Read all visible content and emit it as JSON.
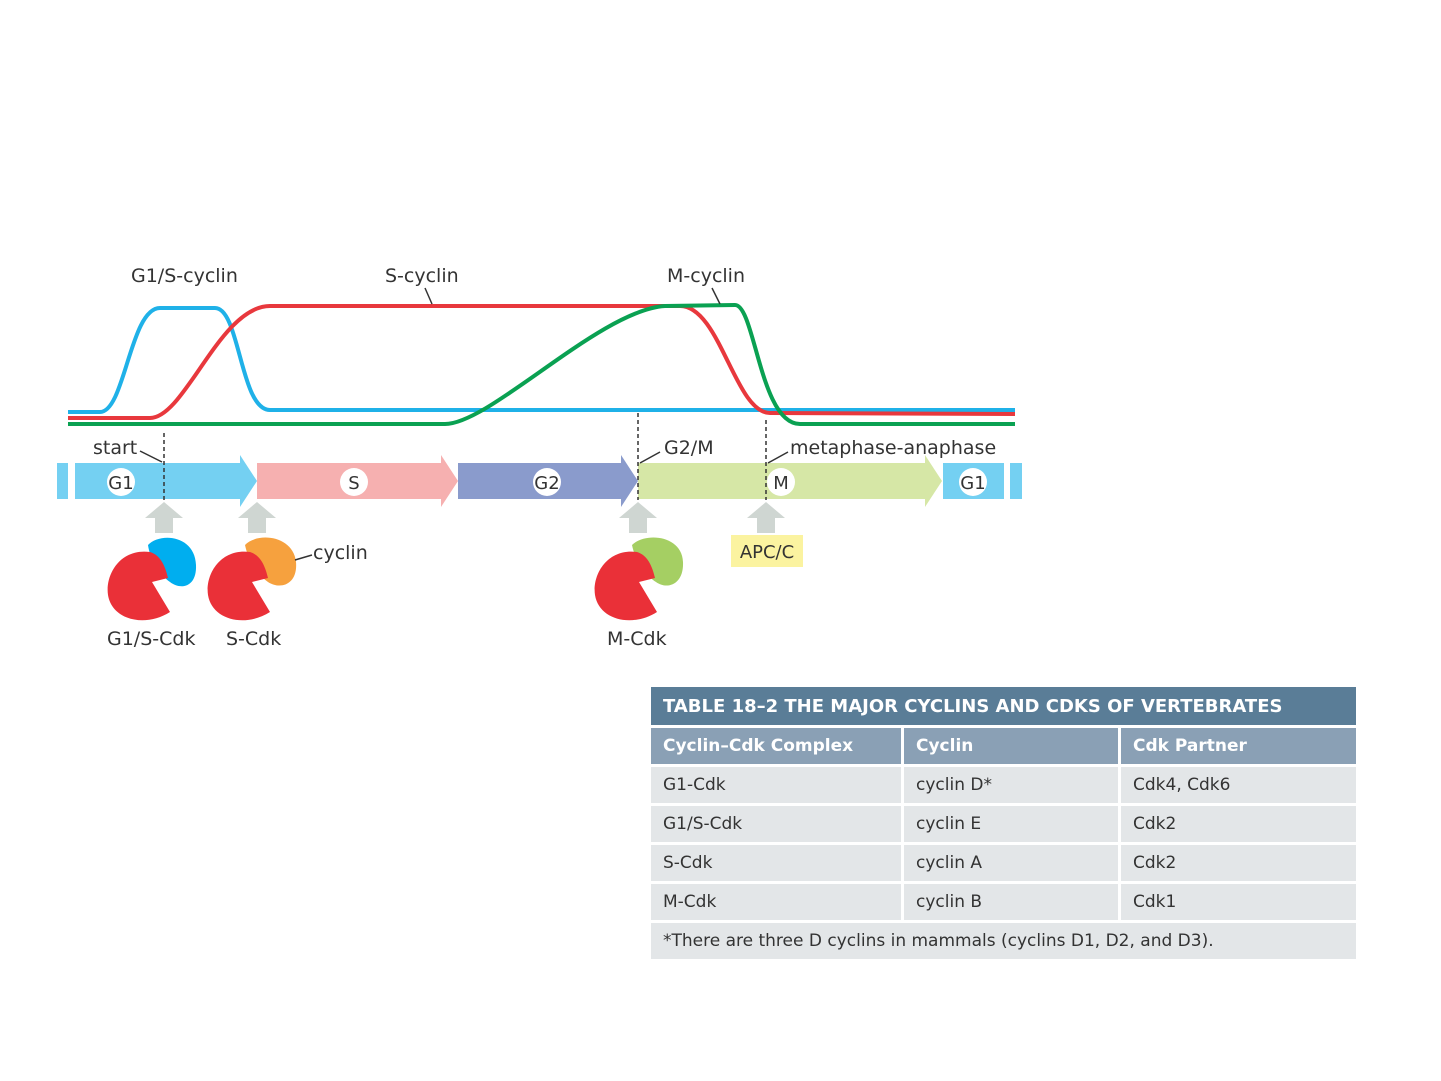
{
  "diagram": {
    "curve_labels": {
      "g1s_cyclin": "G1/S-cyclin",
      "s_cyclin": "S-cyclin",
      "m_cyclin": "M-cyclin"
    },
    "checkpoints": {
      "start": "start",
      "g2m": "G2/M",
      "meta": "metaphase-anaphase"
    },
    "phases": {
      "g1": "G1",
      "s": "S",
      "g2": "G2",
      "m": "M",
      "g1_end": "G1"
    },
    "complexes": {
      "g1s_cdk": "G1/S-Cdk",
      "s_cdk": "S-Cdk",
      "m_cdk": "M-Cdk",
      "cyclin": "cyclin",
      "apcc": "APC/C"
    },
    "colors": {
      "g1s_cyclin": "#1fb1e8",
      "s_cyclin": "#e8383d",
      "m_cyclin": "#0aa152",
      "cdk": "#ea3038",
      "g1_phase": "#74d0f2",
      "s_phase": "#f6b0b0",
      "g2_phase": "#8a9bcc",
      "m_phase": "#d6e7a6",
      "apcc": "#fbf3a0"
    }
  },
  "table": {
    "title": "TABLE 18–2 THE MAJOR CYCLINS AND CDKS OF VERTEBRATES",
    "headers": [
      "Cyclin–Cdk Complex",
      "Cyclin",
      "Cdk Partner"
    ],
    "rows": [
      [
        "G1-Cdk",
        "cyclin D*",
        "Cdk4, Cdk6"
      ],
      [
        "G1/S-Cdk",
        "cyclin E",
        "Cdk2"
      ],
      [
        "S-Cdk",
        "cyclin A",
        "Cdk2"
      ],
      [
        "M-Cdk",
        "cyclin B",
        "Cdk1"
      ]
    ],
    "footnote": "*There are three D cyclins in mammals (cyclins D1, D2, and D3)."
  }
}
